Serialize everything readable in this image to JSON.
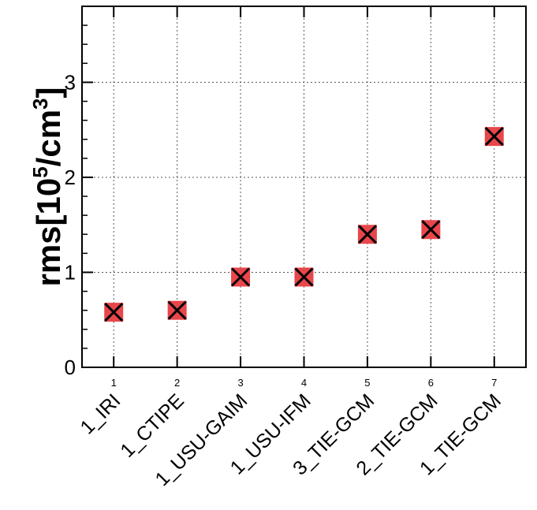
{
  "chart_data": {
    "type": "scatter",
    "title": "",
    "xlabel": "",
    "ylabel": {
      "prefix": "rms[10",
      "exp1": "5",
      "mid": "/cm",
      "exp2": "3",
      "suffix": "]"
    },
    "x_ticks": [
      "1",
      "2",
      "3",
      "4",
      "5",
      "6",
      "7"
    ],
    "categories": [
      "1_IRI",
      "1_CTIPE",
      "1_USU-GAIM",
      "1_USU-IFM",
      "3_TIE-GCM",
      "2_TIE-GCM",
      "1_TIE-GCM"
    ],
    "x": [
      1,
      2,
      3,
      4,
      5,
      6,
      7
    ],
    "values": [
      0.58,
      0.6,
      0.95,
      0.95,
      1.4,
      1.45,
      2.43
    ],
    "xlim": [
      0.5,
      7.5
    ],
    "ylim": [
      0,
      3.8
    ],
    "y_ticks": [
      "0",
      "1",
      "2",
      "3"
    ],
    "grid": true,
    "marker": "x-in-square",
    "colors": {
      "marker_fill": "#e8464a",
      "marker_cross": "#000000",
      "grid": "#555555",
      "axis": "#000000"
    }
  }
}
